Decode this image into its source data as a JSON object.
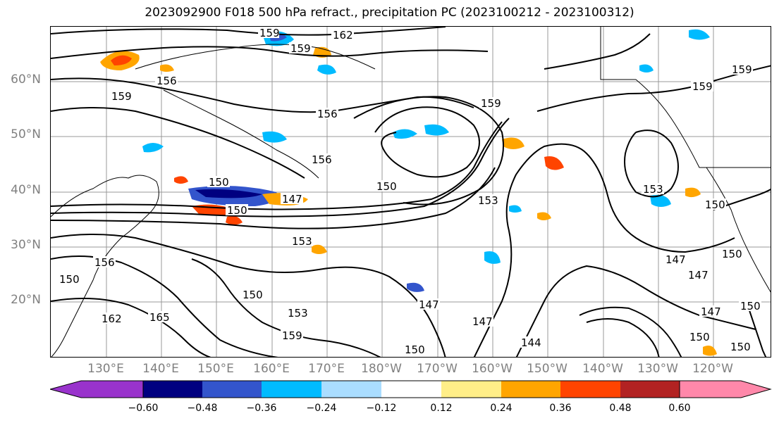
{
  "title": "2023092900 F018 500 hPa refract., precipitation PC (2023100212 - 2023100312)",
  "lat_labels": [
    "60°N",
    "50°N",
    "40°N",
    "30°N",
    "20°N"
  ],
  "lon_labels": [
    "130°E",
    "140°E",
    "150°E",
    "160°E",
    "170°E",
    "180°W",
    "170°W",
    "160°W",
    "150°W",
    "140°W",
    "130°W",
    "120°W"
  ],
  "contour_labels": [
    "162",
    "165",
    "159",
    "156",
    "153",
    "150",
    "147",
    "144"
  ],
  "colorbar": {
    "colors": [
      "#9933cc",
      "#000080",
      "#3355cc",
      "#00bbff",
      "#aaddff",
      "#ffffff",
      "#ffee88",
      "#ffa500",
      "#ff4400",
      "#b22222",
      "#ff88aa"
    ],
    "labels": [
      "−0.60",
      "−0.48",
      "−0.36",
      "−0.24",
      "−0.12",
      "0.12",
      "0.24",
      "0.36",
      "0.48",
      "0.60"
    ]
  }
}
